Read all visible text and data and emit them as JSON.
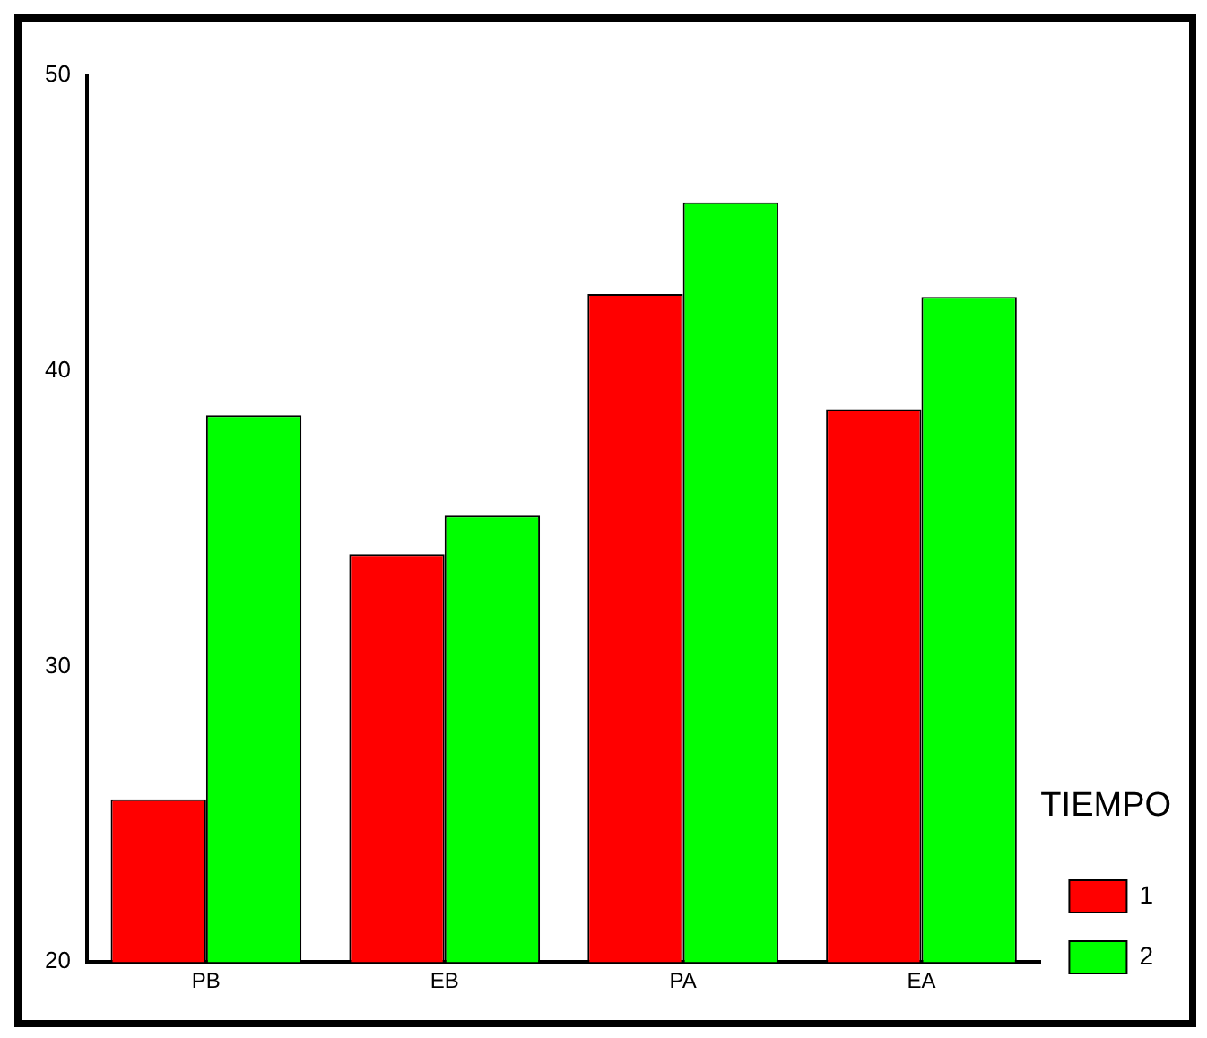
{
  "chart_data": {
    "type": "bar",
    "categories": [
      "PB",
      "EB",
      "PA",
      "EA"
    ],
    "legend_title": "TIEMPO",
    "legend": "right",
    "series": [
      {
        "name": "1",
        "color": "#ff0000",
        "values": [
          25.5,
          33.8,
          42.6,
          38.7
        ]
      },
      {
        "name": "2",
        "color": "#00ff00",
        "values": [
          38.5,
          35.1,
          45.7,
          42.5
        ]
      }
    ],
    "ylim": [
      20,
      50
    ],
    "yticks": [
      20,
      30,
      40,
      50
    ],
    "grid": false
  }
}
